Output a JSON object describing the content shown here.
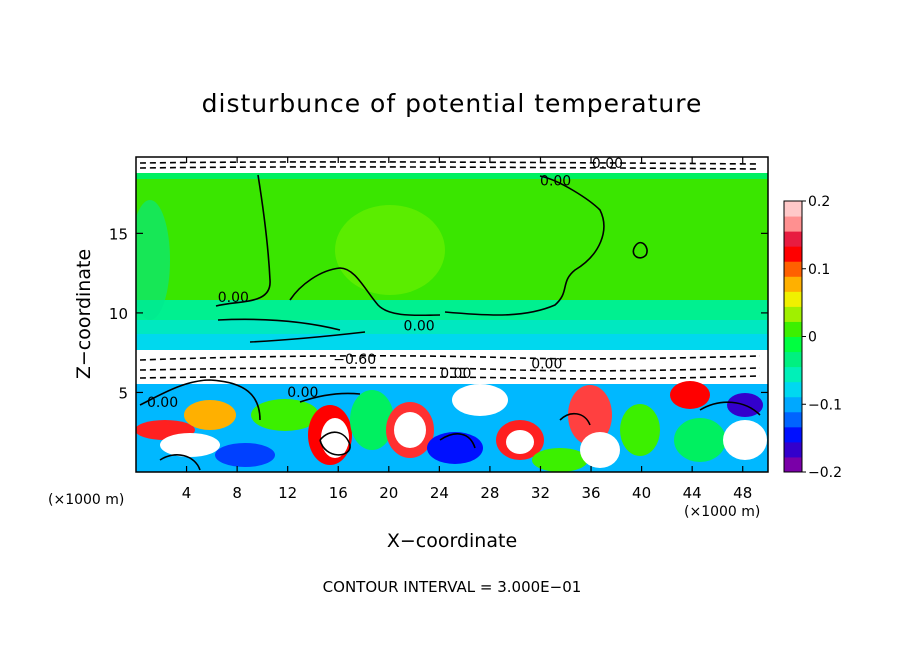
{
  "chart_data": {
    "type": "heatmap",
    "title": "disturbunce of potential temperature",
    "xlabel": "X−coordinate",
    "ylabel": "Z−coordinate",
    "x_unit": "(×1000 m)",
    "y_unit": "(×1000 m)",
    "xlim": [
      0,
      50
    ],
    "ylim": [
      0,
      19.8
    ],
    "x_ticks": [
      4,
      8,
      12,
      16,
      20,
      24,
      28,
      32,
      36,
      40,
      44,
      48
    ],
    "y_ticks": [
      5,
      10,
      15
    ],
    "contour_interval": "CONTOUR INTERVAL = 3.000E−01",
    "contour_labels": [
      {
        "text": "0.00",
        "x": 33.2,
        "y": 18.0
      },
      {
        "text": "0.00",
        "x": 37.3,
        "y": 19.1
      },
      {
        "text": "0.00",
        "x": 7.7,
        "y": 10.7
      },
      {
        "text": "0.00",
        "x": 22.4,
        "y": 8.9
      },
      {
        "text": "−0.60",
        "x": 17.3,
        "y": 6.8
      },
      {
        "text": "0.00",
        "x": 13.2,
        "y": 4.7
      },
      {
        "text": "0.00",
        "x": 2.1,
        "y": 4.1
      },
      {
        "text": "0.00",
        "x": 25.3,
        "y": 5.9
      },
      {
        "text": "0.00",
        "x": 32.5,
        "y": 6.5
      }
    ],
    "colorbar": {
      "range": [
        -0.2,
        0.2
      ],
      "tick_labels": [
        "0.2",
        "0.1",
        "0",
        "−0.1",
        "−0.2"
      ],
      "tick_values": [
        0.2,
        0.1,
        0,
        -0.1,
        -0.2
      ],
      "colors": [
        "#7a00a8",
        "#3300cc",
        "#0010ff",
        "#0064ff",
        "#00a8ff",
        "#00d8f0",
        "#00f0b8",
        "#00f080",
        "#00ff40",
        "#3cf000",
        "#a0f000",
        "#f0f000",
        "#ffb000",
        "#ff6000",
        "#ff0000",
        "#e81c40",
        "#ff9090",
        "#ffc8c8"
      ]
    }
  }
}
